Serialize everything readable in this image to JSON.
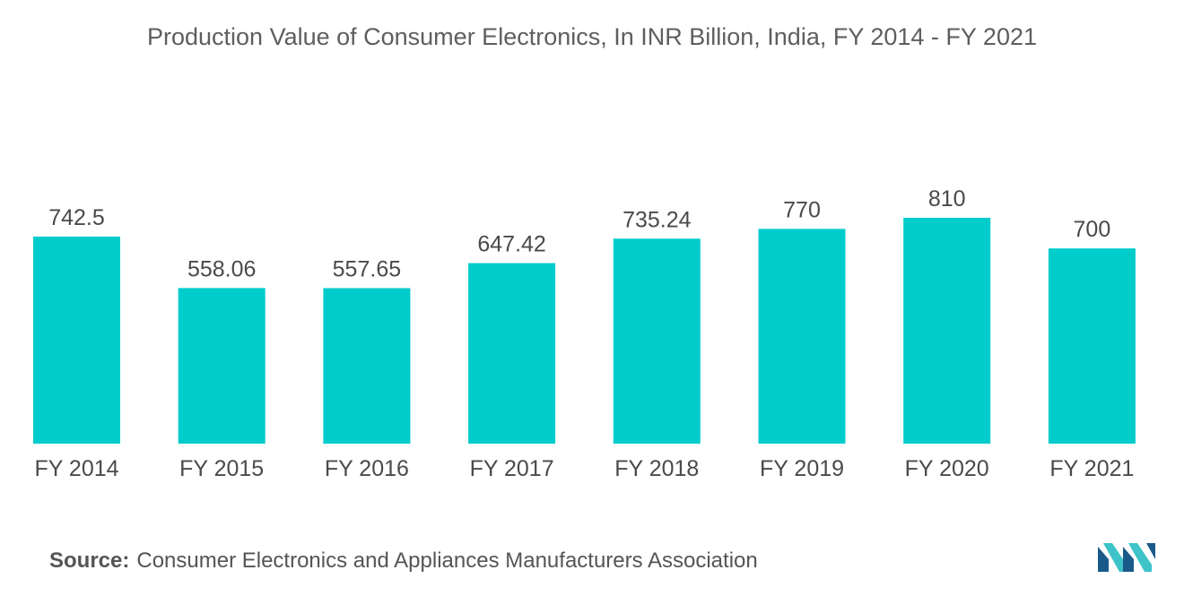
{
  "chart_data": {
    "type": "bar",
    "title": "Production Value of Consumer Electronics, In INR Billion, India, FY 2014 - FY 2021",
    "categories": [
      "FY 2014",
      "FY 2015",
      "FY 2016",
      "FY 2017",
      "FY 2018",
      "FY 2019",
      "FY 2020",
      "FY 2021"
    ],
    "values": [
      742.5,
      558.06,
      557.65,
      647.42,
      735.24,
      770,
      810,
      700
    ],
    "value_labels": [
      "742.5",
      "558.06",
      "557.65",
      "647.42",
      "735.24",
      "770",
      "810",
      "700"
    ],
    "xlabel": "",
    "ylabel": "",
    "ylim": [
      0,
      810
    ],
    "grid": false,
    "legend": "none",
    "bar_color": "#00cccc"
  },
  "source": {
    "label": "Source:",
    "text": "Consumer Electronics and Appliances Manufacturers Association"
  },
  "logo": {
    "icon": "mordor-intelligence-logo-icon",
    "colors": [
      "#1a5a8a",
      "#3ec3c8"
    ]
  }
}
